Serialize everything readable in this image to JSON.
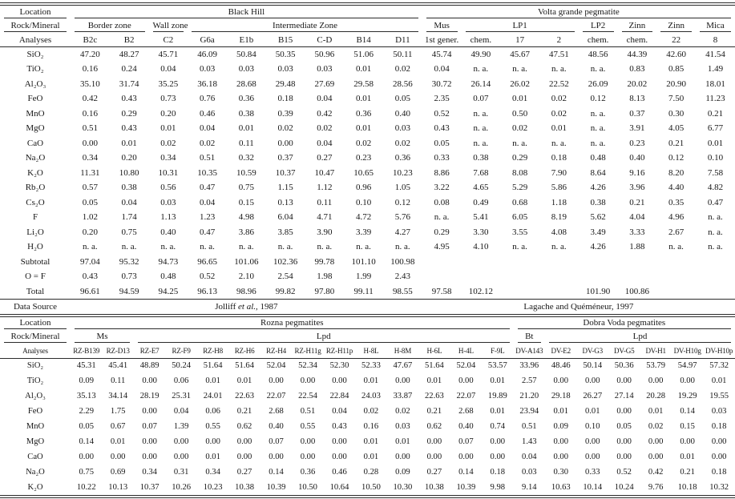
{
  "document": {
    "kind": "mineral chemistry composition table",
    "background": "#ffffff",
    "rule_color": "#2b2b2b",
    "text_color": "#171717"
  },
  "table1": {
    "location_row": {
      "label": "Location",
      "groups": [
        {
          "label": "Black Hill",
          "span": 9
        },
        {
          "label": "Volta grande pegmatite",
          "span": 8
        }
      ]
    },
    "rock_row": {
      "label": "Rock/Mineral",
      "groups": [
        {
          "label": "Border zone",
          "span": 2
        },
        {
          "label": "Wall zone",
          "span": 1
        },
        {
          "label": "Intermediate Zone",
          "span": 6
        },
        {
          "label": "Mus",
          "span": 1
        },
        {
          "label": "LP1",
          "span": 3
        },
        {
          "label": "LP2",
          "span": 1
        },
        {
          "label": "Zinn",
          "span": 1
        },
        {
          "label": "Zinn",
          "span": 1
        },
        {
          "label": "Mica",
          "span": 1
        }
      ]
    },
    "analyses_row": {
      "label": "Analyses",
      "columns": [
        "B2c",
        "B2",
        "C2",
        "G6a",
        "E1b",
        "B15",
        "C-D",
        "B14",
        "D11",
        "1st gener.",
        "chem.",
        "17",
        "2",
        "chem.",
        "chem.",
        "22",
        "8"
      ]
    },
    "rows": [
      {
        "label": "SiO₂",
        "values": [
          "47.20",
          "48.27",
          "45.71",
          "46.09",
          "50.84",
          "50.35",
          "50.96",
          "51.06",
          "50.11",
          "45.74",
          "49.90",
          "45.67",
          "47.51",
          "48.56",
          "44.39",
          "42.60",
          "41.54"
        ]
      },
      {
        "label": "TiO₂",
        "values": [
          "0.16",
          "0.24",
          "0.04",
          "0.03",
          "0.03",
          "0.03",
          "0.03",
          "0.01",
          "0.02",
          "0.04",
          "n. a.",
          "n. a.",
          "n. a.",
          "n. a.",
          "0.83",
          "0.85",
          "1.49"
        ]
      },
      {
        "label": "Al₂O₃",
        "values": [
          "35.10",
          "31.74",
          "35.25",
          "36.18",
          "28.68",
          "29.48",
          "27.69",
          "29.58",
          "28.56",
          "30.72",
          "26.14",
          "26.02",
          "22.52",
          "26.09",
          "20.02",
          "20.90",
          "18.01"
        ]
      },
      {
        "label": "FeO",
        "values": [
          "0.42",
          "0.43",
          "0.73",
          "0.76",
          "0.36",
          "0.18",
          "0.04",
          "0.01",
          "0.05",
          "2.35",
          "0.07",
          "0.01",
          "0.02",
          "0.12",
          "8.13",
          "7.50",
          "11.23"
        ]
      },
      {
        "label": "MnO",
        "values": [
          "0.16",
          "0.29",
          "0.20",
          "0.46",
          "0.38",
          "0.39",
          "0.42",
          "0.36",
          "0.40",
          "0.52",
          "n. a.",
          "0.50",
          "0.02",
          "n. a.",
          "0.37",
          "0.30",
          "0.21"
        ]
      },
      {
        "label": "MgO",
        "values": [
          "0.51",
          "0.43",
          "0.01",
          "0.04",
          "0.01",
          "0.02",
          "0.02",
          "0.01",
          "0.03",
          "0.43",
          "n. a.",
          "0.02",
          "0.01",
          "n. a.",
          "3.91",
          "4.05",
          "6.77"
        ]
      },
      {
        "label": "CaO",
        "values": [
          "0.00",
          "0.01",
          "0.02",
          "0.02",
          "0.11",
          "0.00",
          "0.04",
          "0.02",
          "0.02",
          "0.05",
          "n. a.",
          "n. a.",
          "n. a.",
          "n. a.",
          "0.23",
          "0.21",
          "0.01"
        ]
      },
      {
        "label": "Na₂O",
        "values": [
          "0.34",
          "0.20",
          "0.34",
          "0.51",
          "0.32",
          "0.37",
          "0.27",
          "0.23",
          "0.36",
          "0.33",
          "0.38",
          "0.29",
          "0.18",
          "0.48",
          "0.40",
          "0.12",
          "0.10"
        ]
      },
      {
        "label": "K₂O",
        "values": [
          "11.31",
          "10.80",
          "10.31",
          "10.35",
          "10.59",
          "10.37",
          "10.47",
          "10.65",
          "10.23",
          "8.86",
          "7.68",
          "8.08",
          "7.90",
          "8.64",
          "9.16",
          "8.20",
          "7.58"
        ]
      },
      {
        "label": "Rb₂O",
        "values": [
          "0.57",
          "0.38",
          "0.56",
          "0.47",
          "0.75",
          "1.15",
          "1.12",
          "0.96",
          "1.05",
          "3.22",
          "4.65",
          "5.29",
          "5.86",
          "4.26",
          "3.96",
          "4.40",
          "4.82"
        ]
      },
      {
        "label": "Cs₂O",
        "values": [
          "0.05",
          "0.04",
          "0.03",
          "0.04",
          "0.15",
          "0.13",
          "0.11",
          "0.10",
          "0.12",
          "0.08",
          "0.49",
          "0.68",
          "1.18",
          "0.38",
          "0.21",
          "0.35",
          "0.47"
        ]
      },
      {
        "label": "F",
        "values": [
          "1.02",
          "1.74",
          "1.13",
          "1.23",
          "4.98",
          "6.04",
          "4.71",
          "4.72",
          "5.76",
          "n. a.",
          "5.41",
          "6.05",
          "8.19",
          "5.62",
          "4.04",
          "4.96",
          "n. a."
        ]
      },
      {
        "label": "Li₂O",
        "values": [
          "0.20",
          "0.75",
          "0.40",
          "0.47",
          "3.86",
          "3.85",
          "3.90",
          "3.39",
          "4.27",
          "0.29",
          "3.30",
          "3.55",
          "4.08",
          "3.49",
          "3.33",
          "2.67",
          "n. a."
        ]
      },
      {
        "label": "H₂O",
        "values": [
          "n. a.",
          "n. a.",
          "n. a.",
          "n. a.",
          "n. a.",
          "n. a.",
          "n. a.",
          "n. a.",
          "n. a.",
          "4.95",
          "4.10",
          "n. a.",
          "n. a.",
          "4.26",
          "1.88",
          "n. a.",
          "n. a."
        ]
      },
      {
        "label": "Subtotal",
        "values": [
          "97.04",
          "95.32",
          "94.73",
          "96.65",
          "101.06",
          "102.36",
          "99.78",
          "101.10",
          "100.98",
          "",
          "",
          "",
          "",
          "",
          "",
          "",
          ""
        ]
      },
      {
        "label": "O = F",
        "values": [
          "0.43",
          "0.73",
          "0.48",
          "0.52",
          "2.10",
          "2.54",
          "1.98",
          "1.99",
          "2.43",
          "",
          "",
          "",
          "",
          "",
          "",
          "",
          ""
        ]
      },
      {
        "label": "Total",
        "values": [
          "96.61",
          "94.59",
          "94.25",
          "96.13",
          "98.96",
          "99.82",
          "97.80",
          "99.11",
          "98.55",
          "97.58",
          "102.12",
          "",
          "",
          "101.90",
          "100.86",
          "",
          ""
        ]
      }
    ],
    "data_source_row": {
      "label": "Data Source",
      "sources": [
        {
          "span": 9,
          "pre": "Jolliff ",
          "italic": "et al.",
          "post": ", 1987"
        },
        {
          "span": 8,
          "pre": "Lagache and Quéméneur, 1997",
          "italic": "",
          "post": ""
        }
      ]
    }
  },
  "table2": {
    "location_row": {
      "label": "Location",
      "groups": [
        {
          "label": "Rozna pegmatites",
          "span": 14
        },
        {
          "label": "Dobra Voda pegmatites",
          "span": 7
        }
      ]
    },
    "rock_row": {
      "label": "Rock/Mineral",
      "groups": [
        {
          "label": "Ms",
          "span": 2
        },
        {
          "label": "Lpd",
          "span": 12
        },
        {
          "label": "Bt",
          "span": 1
        },
        {
          "label": "Lpd",
          "span": 6
        }
      ]
    },
    "analyses_row": {
      "label": "Analyses",
      "columns": [
        "RZ-B139",
        "RZ-D13",
        "RZ-E7",
        "RZ-F9",
        "RZ-H8",
        "RZ-H6",
        "RZ-H4",
        "RZ-H11g",
        "RZ-H11p",
        "H-8L",
        "H-8M",
        "H-6L",
        "H-4L",
        "F-9L",
        "DV-A143",
        "DV-E2",
        "DV-G3",
        "DV-G5",
        "DV-H1",
        "DV-H10g",
        "DV-H10p"
      ]
    },
    "rows": [
      {
        "label": "SiO₂",
        "values": [
          "45.31",
          "45.41",
          "48.89",
          "50.24",
          "51.64",
          "51.64",
          "52.04",
          "52.34",
          "52.30",
          "52.33",
          "47.67",
          "51.64",
          "52.04",
          "53.57",
          "33.96",
          "48.46",
          "50.14",
          "50.36",
          "53.79",
          "54.97",
          "57.32"
        ]
      },
      {
        "label": "TiO₂",
        "values": [
          "0.09",
          "0.11",
          "0.00",
          "0.06",
          "0.01",
          "0.01",
          "0.00",
          "0.00",
          "0.00",
          "0.01",
          "0.00",
          "0.01",
          "0.00",
          "0.01",
          "2.57",
          "0.00",
          "0.00",
          "0.00",
          "0.00",
          "0.00",
          "0.01"
        ]
      },
      {
        "label": "Al₂O₃",
        "values": [
          "35.13",
          "34.14",
          "28.19",
          "25.31",
          "24.01",
          "22.63",
          "22.07",
          "22.54",
          "22.84",
          "24.03",
          "33.87",
          "22.63",
          "22.07",
          "19.89",
          "21.20",
          "29.18",
          "26.27",
          "27.14",
          "20.28",
          "19.29",
          "19.55"
        ]
      },
      {
        "label": "FeO",
        "values": [
          "2.29",
          "1.75",
          "0.00",
          "0.04",
          "0.06",
          "0.21",
          "2.68",
          "0.51",
          "0.04",
          "0.02",
          "0.02",
          "0.21",
          "2.68",
          "0.01",
          "23.94",
          "0.01",
          "0.01",
          "0.00",
          "0.01",
          "0.14",
          "0.03"
        ]
      },
      {
        "label": "MnO",
        "values": [
          "0.05",
          "0.67",
          "0.07",
          "1.39",
          "0.55",
          "0.62",
          "0.40",
          "0.55",
          "0.43",
          "0.16",
          "0.03",
          "0.62",
          "0.40",
          "0.74",
          "0.51",
          "0.09",
          "0.10",
          "0.05",
          "0.02",
          "0.15",
          "0.18"
        ]
      },
      {
        "label": "MgO",
        "values": [
          "0.14",
          "0.01",
          "0.00",
          "0.00",
          "0.00",
          "0.00",
          "0.07",
          "0.00",
          "0.00",
          "0.01",
          "0.01",
          "0.00",
          "0.07",
          "0.00",
          "1.43",
          "0.00",
          "0.00",
          "0.00",
          "0.00",
          "0.00",
          "0.00"
        ]
      },
      {
        "label": "CaO",
        "values": [
          "0.00",
          "0.00",
          "0.00",
          "0.00",
          "0.01",
          "0.00",
          "0.00",
          "0.00",
          "0.00",
          "0.01",
          "0.00",
          "0.00",
          "0.00",
          "0.00",
          "0.04",
          "0.00",
          "0.00",
          "0.00",
          "0.00",
          "0.01",
          "0.00"
        ]
      },
      {
        "label": "Na₂O",
        "values": [
          "0.75",
          "0.69",
          "0.34",
          "0.31",
          "0.34",
          "0.27",
          "0.14",
          "0.36",
          "0.46",
          "0.28",
          "0.09",
          "0.27",
          "0.14",
          "0.18",
          "0.03",
          "0.30",
          "0.33",
          "0.52",
          "0.42",
          "0.21",
          "0.18"
        ]
      },
      {
        "label": "K₂O",
        "values": [
          "10.22",
          "10.13",
          "10.37",
          "10.26",
          "10.23",
          "10.38",
          "10.39",
          "10.50",
          "10.64",
          "10.50",
          "10.30",
          "10.38",
          "10.39",
          "9.98",
          "9.14",
          "10.63",
          "10.14",
          "10.24",
          "9.76",
          "10.18",
          "10.32"
        ]
      }
    ]
  }
}
